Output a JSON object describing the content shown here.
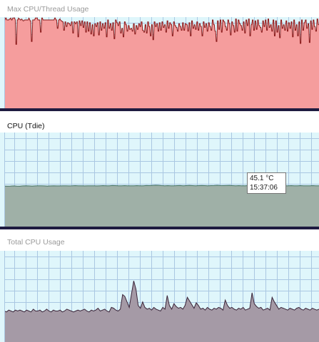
{
  "panels": {
    "max_cpu_thread": {
      "title": "Max CPU/Thread Usage",
      "title_active": false,
      "fill_color": "#f59d9d",
      "line_color": "#8c1a1a"
    },
    "cpu_tdie": {
      "title": "CPU (Tdie)",
      "title_active": true,
      "fill_color": "#9fb0a7",
      "line_color": "#3f6e60",
      "tooltip": {
        "value": "45.1 °C",
        "time": "15:37:06"
      }
    },
    "total_cpu_usage": {
      "title": "Total CPU Usage",
      "title_active": false,
      "fill_color": "#a59aa6",
      "line_color": "#3a2438"
    }
  },
  "colors": {
    "graph_background": "#dff6fb",
    "grid": "#aac7e2",
    "bottom_bar": "#1e1b40"
  },
  "chart_data": [
    {
      "type": "area",
      "title": "Max CPU/Thread Usage",
      "ylim": [
        0,
        100
      ],
      "grid": true,
      "values": [
        97,
        97,
        99,
        99,
        97,
        97,
        97,
        97,
        98,
        98,
        99,
        97,
        97,
        99,
        99,
        99,
        99,
        97,
        71,
        71,
        97,
        97,
        99,
        98,
        98,
        97,
        97,
        98,
        97,
        96,
        96,
        97,
        97,
        97,
        97,
        97,
        97,
        97,
        99,
        98,
        96,
        96,
        74,
        74,
        97,
        97,
        97,
        97,
        99,
        99,
        99,
        99,
        97,
        97,
        97,
        97,
        84,
        84,
        99,
        99,
        97,
        97,
        97,
        97,
        97,
        97,
        97,
        97,
        97,
        97,
        97,
        97,
        97,
        97,
        97,
        97,
        97,
        97,
        99,
        99,
        97,
        97,
        88,
        88,
        97,
        97,
        98,
        97,
        96,
        96,
        95,
        95,
        86,
        86,
        95,
        95,
        90,
        90,
        94,
        94,
        93,
        93,
        91,
        91,
        95,
        95,
        83,
        83,
        95,
        95,
        93,
        93,
        95,
        95,
        79,
        79,
        96,
        96,
        91,
        91,
        96,
        96,
        89,
        89,
        95,
        95,
        84,
        84,
        95,
        95,
        85,
        85,
        94,
        94,
        82,
        82,
        92,
        92,
        80,
        80,
        93,
        93,
        90,
        90,
        94,
        94,
        81,
        81,
        95,
        95,
        86,
        86,
        93,
        93,
        88,
        88,
        94,
        94,
        79,
        79,
        97,
        97,
        88,
        88,
        93,
        93,
        86,
        86,
        94,
        94,
        77,
        77,
        97,
        97,
        94,
        94,
        91,
        91,
        95,
        95,
        83,
        83,
        88,
        88,
        79,
        79,
        95,
        95,
        92,
        92,
        85,
        85,
        91,
        91,
        87,
        87,
        88,
        88,
        85,
        85,
        93,
        93,
        82,
        82,
        91,
        91,
        87,
        87,
        93,
        93,
        90,
        90,
        95,
        95,
        86,
        86,
        84,
        84,
        92,
        92,
        83,
        83,
        95,
        95,
        90,
        90,
        80,
        80,
        92,
        92,
        76,
        76,
        95,
        95,
        90,
        90,
        93,
        93,
        85,
        85,
        94,
        94,
        86,
        86,
        95,
        95,
        89,
        89,
        92,
        92,
        84,
        84,
        96,
        96,
        88,
        88,
        94,
        94,
        92,
        92,
        80,
        80,
        95,
        95,
        91,
        91,
        89,
        89,
        85,
        85,
        93,
        93,
        90,
        90,
        86,
        86,
        94,
        94,
        86,
        86,
        93,
        93,
        92,
        92,
        85,
        85,
        94,
        94,
        80,
        80,
        96,
        96,
        88,
        88,
        92,
        92,
        87,
        87,
        95,
        95,
        86,
        86,
        93,
        93,
        90,
        90,
        80,
        80,
        95,
        95,
        89,
        89,
        93,
        93,
        85,
        85,
        94,
        94,
        90,
        90,
        86,
        86,
        97,
        97,
        92,
        92,
        85,
        85,
        74,
        74,
        96,
        96,
        87,
        87,
        97,
        97,
        84,
        84,
        97,
        97,
        95,
        95,
        90,
        90,
        86,
        86,
        97,
        97,
        93,
        93,
        81,
        81,
        95,
        95,
        91,
        91,
        84,
        84,
        98,
        98,
        85,
        85,
        97,
        97,
        93,
        93,
        91,
        91,
        86,
        86,
        95,
        95,
        83,
        83,
        97,
        97,
        91,
        91,
        98,
        98,
        80,
        80,
        92,
        92,
        97,
        97,
        86,
        86,
        96,
        96,
        87,
        87,
        97,
        97,
        91,
        91,
        89,
        89,
        84,
        84,
        96,
        96,
        90,
        90,
        97,
        97,
        86,
        86,
        98,
        98,
        89,
        89,
        92,
        92,
        85,
        85,
        97,
        97,
        80,
        80,
        96,
        96,
        84,
        84,
        91,
        91,
        78,
        78,
        97,
        97,
        88,
        88,
        92,
        92,
        86,
        86,
        96,
        96,
        85,
        85,
        94,
        94,
        88,
        88,
        95,
        95,
        79,
        79,
        97,
        97,
        86,
        86,
        92,
        92,
        80,
        80,
        95,
        95,
        72,
        72,
        97,
        97,
        86,
        86,
        94,
        94,
        97,
        97,
        88,
        88,
        93,
        93,
        73,
        73,
        96,
        96,
        87,
        87,
        97,
        97,
        90,
        90,
        85,
        85,
        98,
        98,
        92,
        92
      ]
    },
    {
      "type": "area",
      "title": "CPU (Tdie)",
      "ylim": [
        0,
        100
      ],
      "grid": true,
      "values": [
        44.8,
        44.7,
        44.8,
        44.9,
        44.8,
        44.7,
        44.9,
        45.0,
        44.9,
        44.8,
        44.9,
        45.0,
        45.1,
        44.9,
        44.8,
        44.9,
        45.0,
        44.9,
        44.9,
        45.0,
        45.1,
        44.9,
        45.0,
        45.2,
        45.1,
        45.0,
        44.9,
        45.0,
        45.1,
        45.0,
        44.9,
        45.1,
        45.2,
        45.0,
        45.1,
        45.3,
        45.2,
        45.0,
        45.1,
        45.2,
        45.1,
        45.0,
        45.1,
        45.2,
        45.0,
        45.1,
        45.3,
        45.2,
        45.4,
        45.6,
        45.5,
        45.2,
        45.1,
        45.2,
        45.0,
        45.1,
        45.2,
        45.3,
        45.1,
        45.2,
        45.4,
        45.2,
        45.1,
        45.2,
        45.3,
        45.2,
        45.1,
        45.2,
        45.3,
        45.5,
        45.3,
        45.2,
        45.3,
        45.4,
        45.2,
        45.1,
        45.2,
        45.1,
        45.0,
        45.2,
        45.3,
        45.2,
        45.1,
        45.2,
        45.1,
        45.0,
        45.1,
        45.2,
        45.3,
        45.1,
        45.2,
        45.0,
        45.1,
        45.2,
        45.1,
        45.1,
        45.2,
        45.1,
        45.0,
        45.1,
        45.2,
        45.1,
        45.1
      ]
    },
    {
      "type": "area",
      "title": "Total CPU Usage",
      "ylim": [
        0,
        100
      ],
      "grid": true,
      "values": [
        34,
        33,
        35,
        34,
        33,
        35,
        34,
        35,
        34,
        33,
        35,
        34,
        33,
        36,
        34,
        34,
        35,
        33,
        34,
        36,
        34,
        33,
        35,
        34,
        34,
        35,
        33,
        34,
        36,
        35,
        34,
        33,
        34,
        35,
        34,
        35,
        36,
        34,
        33,
        35,
        34,
        35,
        37,
        34,
        35,
        36,
        34,
        33,
        38,
        37,
        35,
        34,
        36,
        52,
        50,
        44,
        38,
        53,
        67,
        58,
        40,
        37,
        44,
        38,
        36,
        37,
        35,
        38,
        36,
        35,
        34,
        38,
        36,
        51,
        40,
        36,
        42,
        39,
        37,
        38,
        36,
        40,
        49,
        45,
        41,
        37,
        43,
        40,
        36,
        37,
        35,
        38,
        36,
        35,
        37,
        36,
        38,
        37,
        35,
        46,
        40,
        37,
        38,
        36,
        35,
        37,
        36,
        38,
        35,
        36,
        37,
        54,
        42,
        39,
        37,
        38,
        35,
        36,
        37,
        35,
        49,
        44,
        40,
        36,
        38,
        37,
        36,
        35,
        37,
        36,
        35,
        37,
        38,
        36,
        35,
        37,
        36,
        35,
        37,
        36,
        35,
        36
      ]
    }
  ]
}
